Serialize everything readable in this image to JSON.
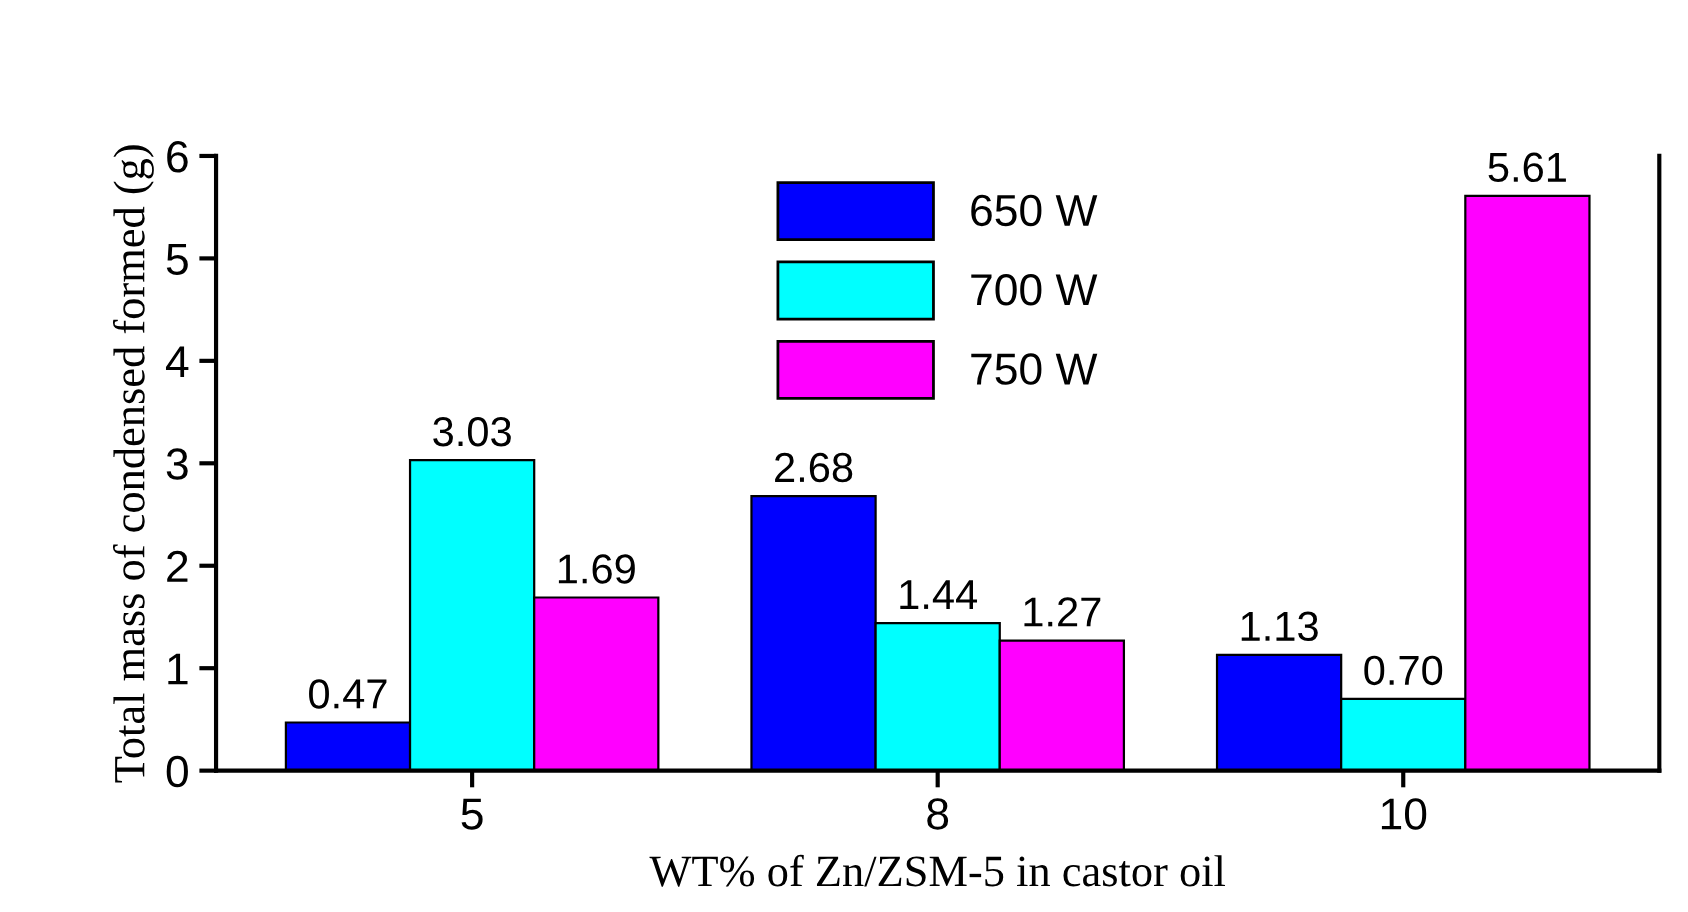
{
  "chart_data": {
    "type": "bar",
    "xlabel": "WT% of Zn/ZSM-5 in castor oil",
    "ylabel": "Total mass of condensed formed (g)",
    "categories": [
      "5",
      "8",
      "10"
    ],
    "series": [
      {
        "name": "650 W",
        "color": "#0000ff",
        "values": [
          0.47,
          2.68,
          1.13
        ],
        "value_labels": [
          "0.47",
          "2.68",
          "1.13"
        ]
      },
      {
        "name": "700 W",
        "color": "#00ffff",
        "values": [
          3.03,
          1.44,
          0.7
        ],
        "value_labels": [
          "3.03",
          "1.44",
          "0.70"
        ]
      },
      {
        "name": "750 W",
        "color": "#ff00ff",
        "values": [
          1.69,
          1.27,
          5.61
        ],
        "value_labels": [
          "1.69",
          "1.27",
          "5.61"
        ]
      }
    ],
    "ylim": [
      0,
      6
    ],
    "yticks": [
      0,
      1,
      2,
      3,
      4,
      5,
      6
    ],
    "grid": false,
    "legend": "top"
  }
}
